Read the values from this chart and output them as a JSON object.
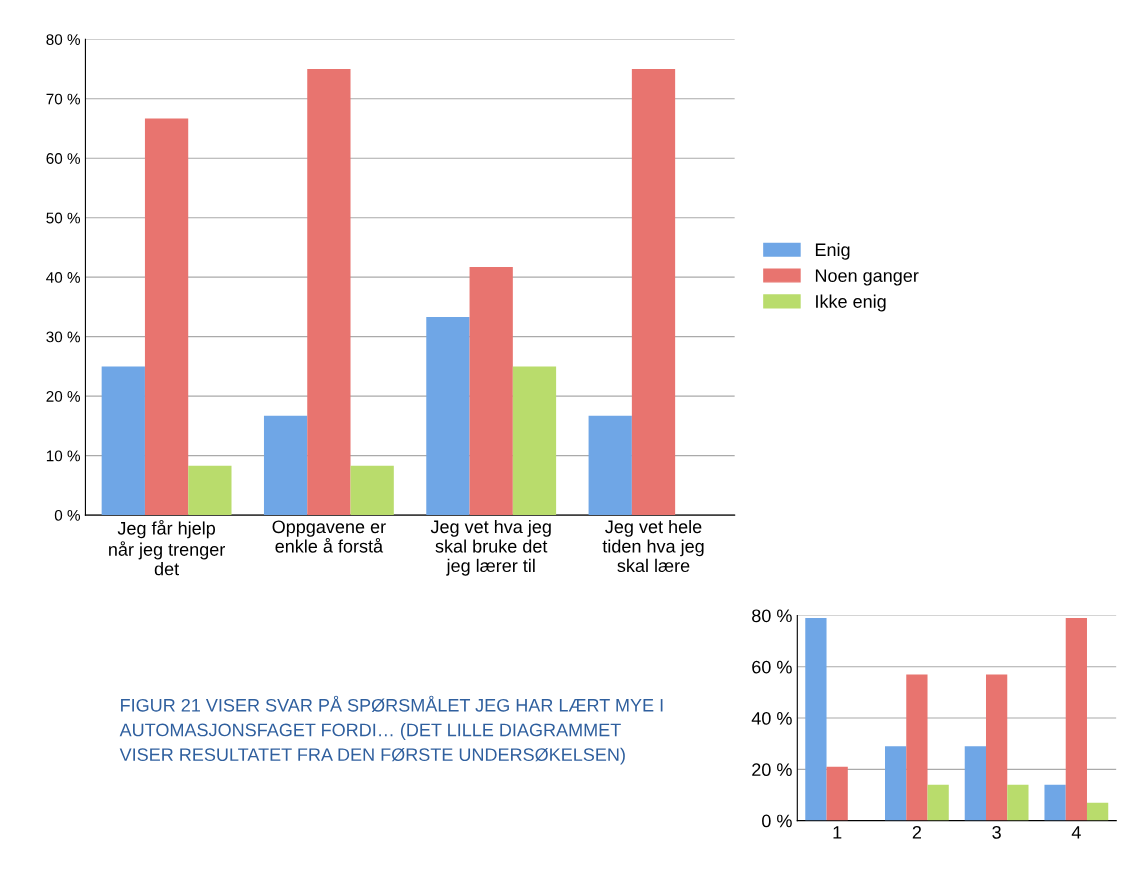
{
  "chart_data": [
    {
      "type": "bar",
      "categories": [
        "Jeg får hjelp når jeg trenger det",
        "Oppgavene er enkle å forstå",
        "Jeg vet hva jeg skal bruke det jeg lærer til",
        "Jeg vet hele tiden hva jeg skal lære"
      ],
      "series": [
        {
          "name": "Enig",
          "color": "#6fa6e6",
          "values": [
            25,
            16.7,
            33.3,
            16.7
          ]
        },
        {
          "name": "Noen ganger",
          "color": "#e8746f",
          "values": [
            66.7,
            75,
            41.7,
            75
          ]
        },
        {
          "name": "Ikke enig",
          "color": "#b9dc6c",
          "values": [
            8.3,
            8.3,
            25,
            0
          ]
        }
      ],
      "ylim": [
        0,
        80
      ],
      "yticks": [
        {
          "value": 0,
          "label": "0 %"
        },
        {
          "value": 10,
          "label": "10 %"
        },
        {
          "value": 20,
          "label": "20 %"
        },
        {
          "value": 30,
          "label": "30 %"
        },
        {
          "value": 40,
          "label": "40 %"
        },
        {
          "value": 50,
          "label": "50 %"
        },
        {
          "value": 60,
          "label": "60 %"
        },
        {
          "value": 70,
          "label": "70 %"
        },
        {
          "value": 80,
          "label": "80 %"
        }
      ],
      "grid": "y",
      "legend": "right",
      "annotations": [
        "FIGUR 21 VISER SVAR PÅ SPØRSMÅLET JEG HAR LÆRT MYE I AUTOMASJONSFAGET FORDI… (DET LILLE DIAGRAMMET VISER RESULTATET FRA DEN FØRSTE UNDERSØKELSEN)"
      ]
    },
    {
      "type": "bar",
      "categories": [
        "1",
        "2",
        "3",
        "4"
      ],
      "series": [
        {
          "color": "#6fa6e6",
          "values": [
            79,
            29,
            29,
            14
          ]
        },
        {
          "color": "#e8746f",
          "values": [
            21,
            57,
            57,
            79
          ]
        },
        {
          "color": "#b9dc6c",
          "values": [
            0,
            14,
            14,
            7
          ]
        }
      ],
      "ylim": [
        0,
        80
      ],
      "yticks": [
        {
          "value": 0,
          "label": "0 %"
        },
        {
          "value": 20,
          "label": "20 %"
        },
        {
          "value": 40,
          "label": "40 %"
        },
        {
          "value": 60,
          "label": "60 %"
        },
        {
          "value": 80,
          "label": "80 %"
        }
      ],
      "grid": "y"
    }
  ]
}
